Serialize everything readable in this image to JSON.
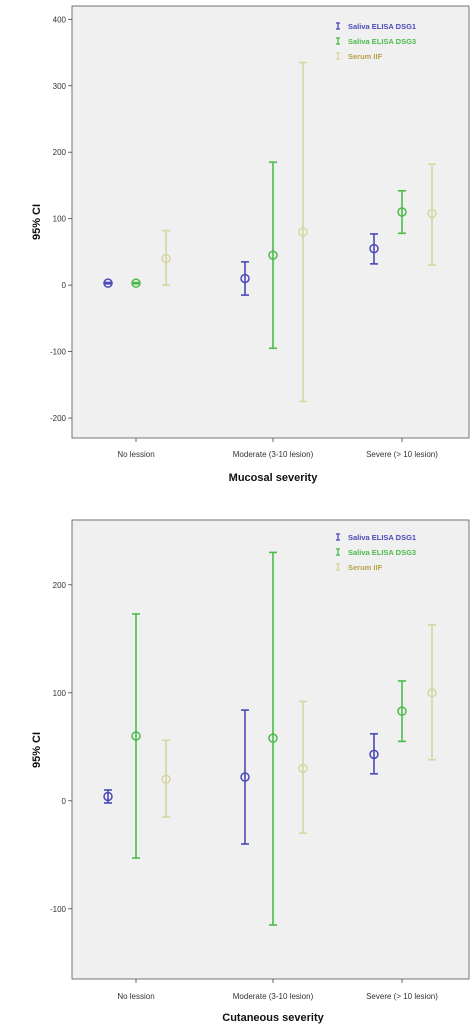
{
  "chart_data": [
    {
      "type": "errorbar",
      "xlabel": "Mucosal severity",
      "ylabel": "95% CI",
      "ylim": [
        -230,
        420
      ],
      "yticks": [
        -200,
        -100,
        0,
        100,
        200,
        300,
        400
      ],
      "categories": [
        "No lession",
        "Moderate (3-10 lesion)",
        "Severe (> 10 lesion)"
      ],
      "legend_position": "top-right",
      "grid": false,
      "series": [
        {
          "name": "Saliva ELISA DSG1",
          "color": "#4a4ab8",
          "mean": [
            3,
            10,
            55
          ],
          "lower": [
            2,
            -15,
            32
          ],
          "upper": [
            4,
            35,
            77
          ]
        },
        {
          "name": "Saliva ELISA DSG3",
          "color": "#4cbb4c",
          "mean": [
            3,
            45,
            110
          ],
          "lower": [
            2,
            -95,
            78
          ],
          "upper": [
            4,
            185,
            142
          ]
        },
        {
          "name": "Serum IIF",
          "color": "#d6d6a2",
          "mean": [
            40,
            80,
            108
          ],
          "lower": [
            0,
            -175,
            30
          ],
          "upper": [
            82,
            335,
            182
          ]
        }
      ]
    },
    {
      "type": "errorbar",
      "xlabel": "Cutaneous severity",
      "ylabel": "95% CI",
      "ylim": [
        -165,
        260
      ],
      "yticks": [
        -100,
        0,
        100,
        200
      ],
      "categories": [
        "No lession",
        "Moderate (3-10 lesion)",
        "Severe (> 10 lesion)"
      ],
      "legend_position": "top-right",
      "grid": false,
      "series": [
        {
          "name": "Saliva ELISA DSG1",
          "color": "#4a4ab8",
          "mean": [
            4,
            22,
            43
          ],
          "lower": [
            -2,
            -40,
            25
          ],
          "upper": [
            10,
            84,
            62
          ]
        },
        {
          "name": "Saliva ELISA DSG3",
          "color": "#4cbb4c",
          "mean": [
            60,
            58,
            83
          ],
          "lower": [
            -53,
            -115,
            55
          ],
          "upper": [
            173,
            230,
            111
          ]
        },
        {
          "name": "Serum IIF",
          "color": "#d6d6a2",
          "mean": [
            20,
            30,
            100
          ],
          "lower": [
            -15,
            -30,
            38
          ],
          "upper": [
            56,
            92,
            163
          ]
        }
      ]
    }
  ]
}
